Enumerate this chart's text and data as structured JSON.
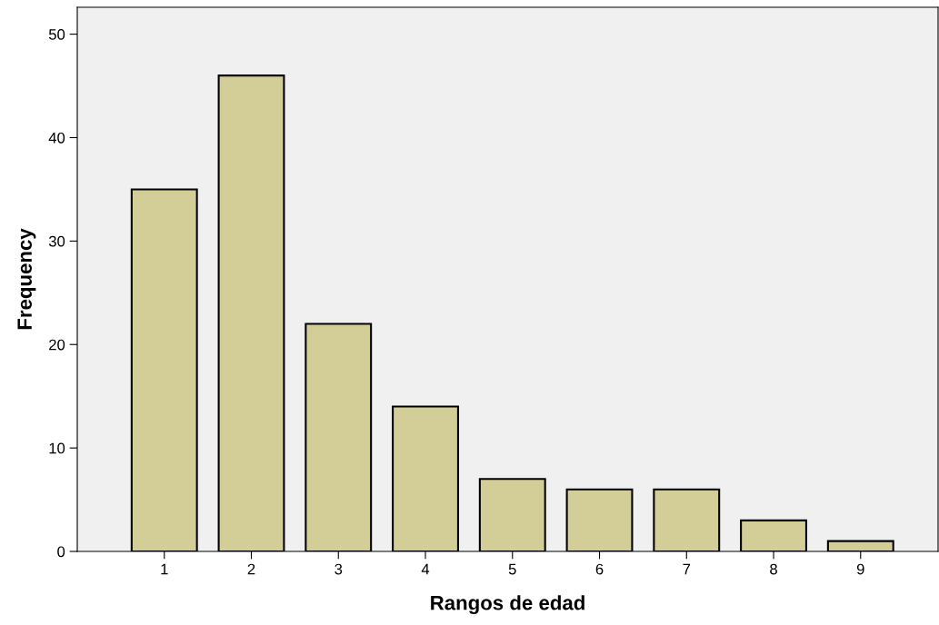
{
  "chart_data": {
    "type": "bar",
    "xlabel": "Rangos de edad",
    "ylabel": "Frequency",
    "categories": [
      "1",
      "2",
      "3",
      "4",
      "5",
      "6",
      "7",
      "8",
      "9"
    ],
    "values": [
      35,
      46,
      22,
      14,
      7,
      6,
      6,
      3,
      1
    ],
    "color": "#d3ce97",
    "ylim": [
      0,
      52.6
    ],
    "yticks": [
      0,
      10,
      20,
      30,
      40,
      50
    ],
    "grid": false,
    "legend": false
  }
}
